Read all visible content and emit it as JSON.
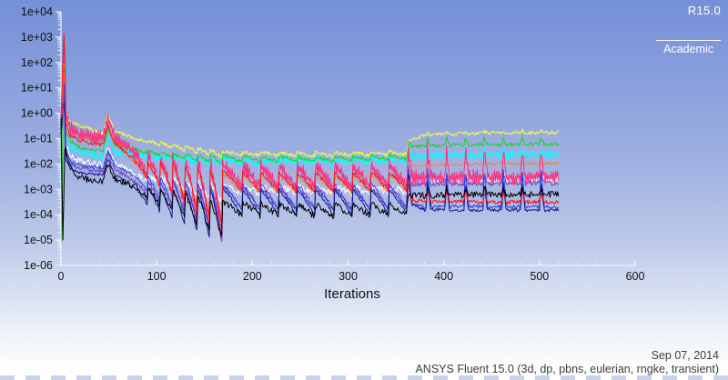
{
  "badge": {
    "version": "R15.0",
    "license": "Academic"
  },
  "footer": {
    "date": "Sep 07, 2014",
    "app": "ANSYS Fluent 15.0 (3d, dp, pbns, eulerian, rngke, transient)"
  },
  "chart_data": {
    "type": "line",
    "title": "",
    "xlabel": "Iterations",
    "ylabel": "",
    "x_axis": {
      "min": 0,
      "max": 600,
      "major_ticks": [
        0,
        100,
        200,
        300,
        400,
        500,
        600
      ],
      "minor_tick_step": 20
    },
    "y_axis": {
      "log": true,
      "min": 1e-06,
      "max": 10000.0,
      "tick_labels": [
        "1e+04",
        "1e+03",
        "1e+02",
        "1e+01",
        "1e+00",
        "1e-01",
        "1e-02",
        "1e-03",
        "1e-04",
        "1e-05",
        "1e-06"
      ]
    },
    "legend": "none",
    "grid": false,
    "last_iteration": 520,
    "sections": {
      "initial_decay": {
        "start": 0,
        "end": 78
      },
      "B": {
        "start": 78,
        "end": 170,
        "period": 13
      },
      "C": {
        "start": 170,
        "end": 362,
        "period": 19.2
      },
      "D": {
        "start": 362,
        "end": 520,
        "period": 19.75
      }
    },
    "series": [
      {
        "id": "residual-white",
        "color": "#ffffff",
        "end_value": 0.0025,
        "keyframes": [
          [
            0,
            -0.4
          ],
          [
            3.5,
            0.8
          ],
          [
            5,
            -1.2
          ],
          [
            10,
            -1.7
          ],
          [
            20,
            -1.9
          ],
          [
            44,
            -2.05
          ],
          [
            49,
            -1.3
          ],
          [
            56,
            -1.95
          ],
          [
            78,
            -2.45
          ],
          [
            120,
            -2.6
          ],
          [
            170,
            -2.85
          ],
          [
            260,
            -2.9
          ],
          [
            361,
            -2.85
          ],
          [
            364,
            -2.65
          ],
          [
            440,
            -2.6
          ],
          [
            520,
            -2.6
          ]
        ],
        "sawB": 0.7,
        "sawC": 0.3,
        "spikeD": 0.2,
        "noise": 0.13,
        "band": 0
      },
      {
        "id": "residual-cyan",
        "color": "#00ffff",
        "end_value": 0.022,
        "keyframes": [
          [
            0,
            -0.5
          ],
          [
            3.5,
            1.7
          ],
          [
            5,
            -0.9
          ],
          [
            10,
            -1.3
          ],
          [
            20,
            -1.55
          ],
          [
            44,
            -1.72
          ],
          [
            49,
            -0.95
          ],
          [
            56,
            -1.55
          ],
          [
            78,
            -1.6
          ],
          [
            120,
            -1.72
          ],
          [
            170,
            -1.8
          ],
          [
            260,
            -1.82
          ],
          [
            361,
            -1.76
          ],
          [
            364,
            -1.7
          ],
          [
            440,
            -1.65
          ],
          [
            520,
            -1.64
          ]
        ],
        "sawB": 0.3,
        "sawC": 0.18,
        "spikeD": 0.18,
        "noise": 0.09,
        "band": 0.1
      },
      {
        "id": "residual-yellow",
        "color": "#ffff33",
        "end_value": 0.17,
        "keyframes": [
          [
            0,
            -0.1
          ],
          [
            2,
            -0.2
          ],
          [
            3.5,
            3.0
          ],
          [
            5,
            -0.15
          ],
          [
            10,
            -0.35
          ],
          [
            20,
            -0.5
          ],
          [
            44,
            -0.8
          ],
          [
            49,
            -0.02
          ],
          [
            56,
            -0.7
          ],
          [
            78,
            -1.0
          ],
          [
            120,
            -1.25
          ],
          [
            170,
            -1.5
          ],
          [
            260,
            -1.55
          ],
          [
            361,
            -1.5
          ],
          [
            364,
            -1.1
          ],
          [
            380,
            -0.85
          ],
          [
            440,
            -0.78
          ],
          [
            520,
            -0.76
          ]
        ],
        "sawB": 0.25,
        "sawC": 0.15,
        "spikeD": 0.08,
        "noise": 0.07,
        "band": 0
      },
      {
        "id": "residual-green",
        "color": "#1ad51a",
        "end_value": 0.06,
        "keyframes": [
          [
            0,
            -0.3
          ],
          [
            1,
            -5.0
          ],
          [
            2,
            -0.5
          ],
          [
            3.5,
            2.9
          ],
          [
            5,
            -0.7
          ],
          [
            10,
            -1.1
          ],
          [
            20,
            -1.35
          ],
          [
            44,
            -1.5
          ],
          [
            49,
            -0.55
          ],
          [
            56,
            -1.25
          ],
          [
            78,
            -1.4
          ],
          [
            120,
            -1.6
          ],
          [
            170,
            -1.68
          ],
          [
            260,
            -1.72
          ],
          [
            361,
            -1.62
          ],
          [
            364,
            -1.35
          ],
          [
            380,
            -1.27
          ],
          [
            440,
            -1.23
          ],
          [
            520,
            -1.22
          ]
        ],
        "sawB": 0.35,
        "sawC": 0.22,
        "spikeD": 0.3,
        "noise": 0.07,
        "band": 0
      },
      {
        "id": "residual-orange",
        "color": "#ff7f1e",
        "end_value": 0.01,
        "keyframes": [
          [
            0,
            -0.55
          ],
          [
            3.5,
            2.0
          ],
          [
            5,
            -0.75
          ],
          [
            10,
            -0.9
          ],
          [
            20,
            -1.0
          ],
          [
            44,
            -1.1
          ],
          [
            49,
            -0.5
          ],
          [
            56,
            -1.05
          ],
          [
            78,
            -2.0
          ],
          [
            120,
            -2.1
          ],
          [
            170,
            -2.4
          ],
          [
            260,
            -2.45
          ],
          [
            361,
            -2.4
          ],
          [
            364,
            -2.05
          ],
          [
            440,
            -2.0
          ],
          [
            520,
            -1.98
          ]
        ],
        "sawB": 2.0,
        "sawC": 0.75,
        "spikeD": 0.04,
        "noise": 0.05,
        "band": 0
      },
      {
        "id": "residual-purple",
        "color": "#7d3bbf",
        "end_value": 0.0018,
        "keyframes": [
          [
            0,
            -0.75
          ],
          [
            3.5,
            1.0
          ],
          [
            5,
            -1.6
          ],
          [
            10,
            -2.0
          ],
          [
            20,
            -2.15
          ],
          [
            44,
            -2.3
          ],
          [
            49,
            -1.6
          ],
          [
            56,
            -2.2
          ],
          [
            78,
            -2.7
          ],
          [
            120,
            -2.75
          ],
          [
            170,
            -2.8
          ],
          [
            260,
            -2.82
          ],
          [
            361,
            -2.78
          ],
          [
            364,
            -2.8
          ],
          [
            440,
            -2.78
          ],
          [
            520,
            -2.76
          ]
        ],
        "sawB": 2.0,
        "sawC": 1.0,
        "spikeD": 0.5,
        "noise": 0.09,
        "band": 0
      },
      {
        "id": "residual-blue",
        "color": "#2a43e8",
        "end_value": 0.00021,
        "keyframes": [
          [
            0,
            -0.5
          ],
          [
            3.5,
            1.4
          ],
          [
            5,
            -1.4
          ],
          [
            10,
            -1.9
          ],
          [
            20,
            -2.05
          ],
          [
            44,
            -2.15
          ],
          [
            49,
            -1.45
          ],
          [
            56,
            -2.05
          ],
          [
            78,
            -2.5
          ],
          [
            120,
            -2.6
          ],
          [
            170,
            -2.9
          ],
          [
            260,
            -2.95
          ],
          [
            361,
            -2.9
          ],
          [
            364,
            -3.6
          ],
          [
            380,
            -3.68
          ],
          [
            440,
            -3.68
          ],
          [
            520,
            -3.68
          ]
        ],
        "sawB": 2.2,
        "sawC": 0.92,
        "spikeD": 1.5,
        "noise": 0.07,
        "band": 0
      },
      {
        "id": "residual-navy",
        "color": "#14148c",
        "end_value": 0.00015,
        "keyframes": [
          [
            0,
            -0.85
          ],
          [
            3.5,
            0.7
          ],
          [
            5,
            -1.8
          ],
          [
            10,
            -2.2
          ],
          [
            20,
            -2.35
          ],
          [
            44,
            -2.45
          ],
          [
            49,
            -1.8
          ],
          [
            56,
            -2.4
          ],
          [
            78,
            -2.95
          ],
          [
            120,
            -3.0
          ],
          [
            170,
            -3.0
          ],
          [
            260,
            -3.02
          ],
          [
            361,
            -2.98
          ],
          [
            364,
            -3.55
          ],
          [
            380,
            -3.8
          ],
          [
            440,
            -3.82
          ],
          [
            520,
            -3.82
          ]
        ],
        "sawB": 2.3,
        "sawC": 1.02,
        "spikeD": 1.15,
        "noise": 0.06,
        "band": 0
      },
      {
        "id": "residual-magenta",
        "color": "#ff2d7a",
        "end_value": 0.003,
        "keyframes": [
          [
            0,
            0.0
          ],
          [
            2,
            0.2
          ],
          [
            3.5,
            4.05
          ],
          [
            5,
            -0.1
          ],
          [
            10,
            -0.6
          ],
          [
            20,
            -0.85
          ],
          [
            44,
            -1.0
          ],
          [
            49,
            -0.1
          ],
          [
            56,
            -0.95
          ],
          [
            78,
            -1.6
          ],
          [
            120,
            -1.75
          ],
          [
            170,
            -2.05
          ],
          [
            260,
            -2.1
          ],
          [
            361,
            -2.05
          ],
          [
            364,
            -2.55
          ],
          [
            440,
            -2.52
          ],
          [
            520,
            -2.5
          ]
        ],
        "sawB": 3.1,
        "sawC": 0.85,
        "spikeD": 1.15,
        "noise": 0.12,
        "band": 0.22
      },
      {
        "id": "residual-red",
        "color": "#ff1111",
        "end_value": 0.00032,
        "keyframes": [
          [
            0,
            -0.15
          ],
          [
            3.5,
            3.6
          ],
          [
            5,
            -0.4
          ],
          [
            10,
            -0.9
          ],
          [
            20,
            -1.1
          ],
          [
            44,
            -1.25
          ],
          [
            49,
            -0.5
          ],
          [
            56,
            -1.15
          ],
          [
            78,
            -1.9
          ],
          [
            120,
            -2.0
          ],
          [
            170,
            -2.3
          ],
          [
            260,
            -2.35
          ],
          [
            361,
            -2.3
          ],
          [
            364,
            -3.45
          ],
          [
            440,
            -3.5
          ],
          [
            520,
            -3.5
          ]
        ],
        "sawB": 2.3,
        "sawC": 0.78,
        "spikeD": 0.42,
        "noise": 0.08,
        "band": 0
      },
      {
        "id": "residual-black",
        "color": "#000000",
        "end_value": 0.00063,
        "keyframes": [
          [
            0,
            -0.2
          ],
          [
            2,
            -4.9
          ],
          [
            4,
            -1.3
          ],
          [
            10,
            -2.2
          ],
          [
            20,
            -2.55
          ],
          [
            44,
            -2.7
          ],
          [
            49,
            -2.0
          ],
          [
            56,
            -2.6
          ],
          [
            78,
            -2.9
          ],
          [
            120,
            -3.1
          ],
          [
            170,
            -3.5
          ],
          [
            260,
            -3.6
          ],
          [
            361,
            -3.55
          ],
          [
            364,
            -3.25
          ],
          [
            440,
            -3.2
          ],
          [
            520,
            -3.2
          ]
        ],
        "sawB": 1.6,
        "sawC": 0.5,
        "spikeD": 0.25,
        "noise": 0.13,
        "band": 0
      }
    ]
  }
}
